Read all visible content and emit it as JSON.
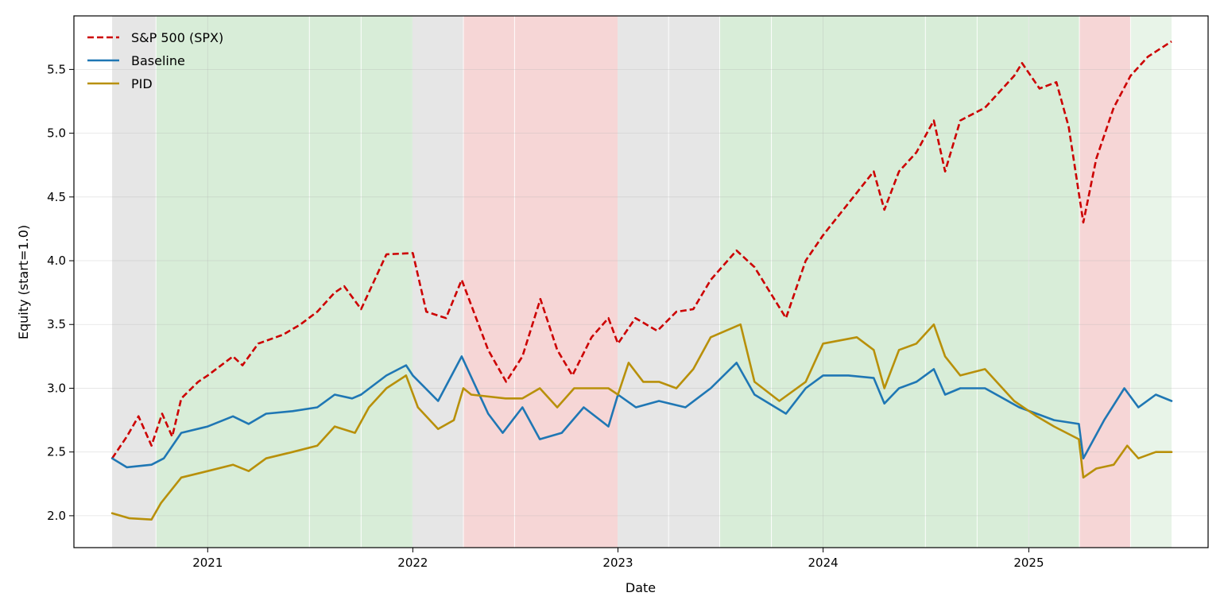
{
  "chart_data": {
    "type": "line",
    "title": "",
    "xlabel": "Date",
    "ylabel": "Equity (start=1.0)",
    "xlim": [
      "2020-05-08",
      "2025-11-16"
    ],
    "ylim": [
      1.75,
      5.92
    ],
    "x_ticks": [
      "2021-01-01",
      "2022-01-01",
      "2023-01-01",
      "2024-01-01",
      "2025-01-01"
    ],
    "x_tick_labels": [
      "2021",
      "2022",
      "2023",
      "2024",
      "2025"
    ],
    "y_ticks": [
      2.0,
      2.5,
      3.0,
      3.5,
      4.0,
      4.5,
      5.0,
      5.5
    ],
    "y_tick_labels": [
      "2.0",
      "2.5",
      "3.0",
      "3.5",
      "4.0",
      "4.5",
      "5.0",
      "5.5"
    ],
    "grid": true,
    "legend_position": "top-left",
    "regimes": [
      {
        "start": "2020-07-15",
        "end": "2020-10-01",
        "color": "#e6e6e6"
      },
      {
        "start": "2020-10-01",
        "end": "2021-07-01",
        "color": "#d8edd8"
      },
      {
        "start": "2021-07-01",
        "end": "2021-10-01",
        "color": "#d8edd8"
      },
      {
        "start": "2021-10-01",
        "end": "2022-01-01",
        "color": "#d8edd8"
      },
      {
        "start": "2022-01-01",
        "end": "2022-04-01",
        "color": "#e6e6e6"
      },
      {
        "start": "2022-04-01",
        "end": "2022-07-01",
        "color": "#f6d6d6"
      },
      {
        "start": "2022-07-01",
        "end": "2023-01-01",
        "color": "#f6d6d6"
      },
      {
        "start": "2023-01-01",
        "end": "2023-04-01",
        "color": "#e6e6e6"
      },
      {
        "start": "2023-04-01",
        "end": "2023-07-01",
        "color": "#e6e6e6"
      },
      {
        "start": "2023-07-01",
        "end": "2023-10-01",
        "color": "#d8edd8"
      },
      {
        "start": "2023-10-01",
        "end": "2024-07-01",
        "color": "#d8edd8"
      },
      {
        "start": "2024-07-01",
        "end": "2024-10-01",
        "color": "#d8edd8"
      },
      {
        "start": "2024-10-01",
        "end": "2025-01-01",
        "color": "#d8edd8"
      },
      {
        "start": "2025-01-01",
        "end": "2025-04-01",
        "color": "#d8edd8"
      },
      {
        "start": "2025-04-01",
        "end": "2025-07-01",
        "color": "#f6d6d6"
      },
      {
        "start": "2025-07-01",
        "end": "2025-09-12",
        "color": "#e8f4e8"
      }
    ],
    "series": [
      {
        "name": "S&P 500 (SPX)",
        "color": "#cc0000",
        "style": "dashed",
        "x": [
          "2020-07-15",
          "2020-08-10",
          "2020-08-31",
          "2020-09-23",
          "2020-10-12",
          "2020-10-30",
          "2020-11-15",
          "2020-12-15",
          "2021-01-01",
          "2021-02-15",
          "2021-03-04",
          "2021-04-01",
          "2021-05-15",
          "2021-06-15",
          "2021-07-15",
          "2021-08-15",
          "2021-09-01",
          "2021-10-01",
          "2021-11-15",
          "2022-01-01",
          "2022-01-25",
          "2022-03-01",
          "2022-03-29",
          "2022-05-15",
          "2022-06-16",
          "2022-07-15",
          "2022-08-16",
          "2022-09-15",
          "2022-10-12",
          "2022-11-15",
          "2022-12-15",
          "2023-01-01",
          "2023-02-01",
          "2023-03-12",
          "2023-04-15",
          "2023-05-15",
          "2023-06-15",
          "2023-07-31",
          "2023-09-01",
          "2023-10-27",
          "2023-12-01",
          "2024-01-01",
          "2024-02-15",
          "2024-03-31",
          "2024-04-19",
          "2024-05-15",
          "2024-06-15",
          "2024-07-16",
          "2024-08-05",
          "2024-09-01",
          "2024-10-15",
          "2024-12-06",
          "2024-12-20",
          "2025-01-20",
          "2025-02-19",
          "2025-03-13",
          "2025-04-08",
          "2025-05-01",
          "2025-06-01",
          "2025-07-01",
          "2025-08-01",
          "2025-09-12"
        ],
        "y": [
          2.45,
          2.62,
          2.78,
          2.55,
          2.8,
          2.62,
          2.92,
          3.05,
          3.1,
          3.25,
          3.18,
          3.35,
          3.42,
          3.5,
          3.6,
          3.75,
          3.8,
          3.62,
          4.05,
          4.06,
          3.6,
          3.55,
          3.85,
          3.3,
          3.05,
          3.25,
          3.7,
          3.3,
          3.1,
          3.4,
          3.55,
          3.35,
          3.55,
          3.45,
          3.6,
          3.62,
          3.85,
          4.08,
          3.95,
          3.55,
          4.0,
          4.2,
          4.45,
          4.7,
          4.4,
          4.7,
          4.85,
          5.1,
          4.7,
          5.1,
          5.2,
          5.45,
          5.55,
          5.35,
          5.4,
          5.05,
          4.3,
          4.8,
          5.2,
          5.45,
          5.6,
          5.72
        ]
      },
      {
        "name": "Baseline",
        "color": "#1f77b4",
        "style": "solid",
        "x": [
          "2020-07-15",
          "2020-08-10",
          "2020-09-23",
          "2020-10-15",
          "2020-11-15",
          "2021-01-01",
          "2021-02-15",
          "2021-03-15",
          "2021-04-15",
          "2021-06-01",
          "2021-07-15",
          "2021-08-15",
          "2021-09-15",
          "2021-10-01",
          "2021-11-15",
          "2021-12-20",
          "2022-01-01",
          "2022-02-15",
          "2022-03-29",
          "2022-05-15",
          "2022-06-10",
          "2022-07-15",
          "2022-08-15",
          "2022-09-23",
          "2022-11-01",
          "2022-12-15",
          "2023-01-01",
          "2023-02-02",
          "2023-03-15",
          "2023-05-01",
          "2023-06-15",
          "2023-07-31",
          "2023-09-01",
          "2023-10-27",
          "2023-12-01",
          "2024-01-01",
          "2024-02-15",
          "2024-03-31",
          "2024-04-19",
          "2024-05-15",
          "2024-06-15",
          "2024-07-16",
          "2024-08-05",
          "2024-09-01",
          "2024-10-15",
          "2024-12-15",
          "2025-01-15",
          "2025-02-15",
          "2025-03-31",
          "2025-04-08",
          "2025-05-15",
          "2025-06-20",
          "2025-07-15",
          "2025-08-15",
          "2025-09-12"
        ],
        "y": [
          2.45,
          2.38,
          2.4,
          2.45,
          2.65,
          2.7,
          2.78,
          2.72,
          2.8,
          2.82,
          2.85,
          2.95,
          2.92,
          2.95,
          3.1,
          3.18,
          3.1,
          2.9,
          3.25,
          2.8,
          2.65,
          2.85,
          2.6,
          2.65,
          2.85,
          2.7,
          2.95,
          2.85,
          2.9,
          2.85,
          3.0,
          3.2,
          2.95,
          2.8,
          3.0,
          3.1,
          3.1,
          3.08,
          2.88,
          3.0,
          3.05,
          3.15,
          2.95,
          3.0,
          3.0,
          2.85,
          2.8,
          2.75,
          2.72,
          2.45,
          2.75,
          3.0,
          2.85,
          2.95,
          2.9
        ]
      },
      {
        "name": "PID",
        "color": "#b8900a",
        "style": "solid",
        "x": [
          "2020-07-15",
          "2020-08-15",
          "2020-09-23",
          "2020-10-10",
          "2020-11-15",
          "2021-01-01",
          "2021-02-15",
          "2021-03-15",
          "2021-04-15",
          "2021-06-01",
          "2021-07-15",
          "2021-08-15",
          "2021-09-20",
          "2021-10-15",
          "2021-11-15",
          "2021-12-20",
          "2022-01-10",
          "2022-02-15",
          "2022-03-15",
          "2022-04-01",
          "2022-04-15",
          "2022-06-15",
          "2022-07-15",
          "2022-08-15",
          "2022-09-15",
          "2022-10-15",
          "2022-11-15",
          "2022-12-15",
          "2023-01-01",
          "2023-01-20",
          "2023-02-15",
          "2023-03-15",
          "2023-04-15",
          "2023-05-15",
          "2023-06-15",
          "2023-08-07",
          "2023-09-01",
          "2023-10-15",
          "2023-12-01",
          "2024-01-01",
          "2024-03-01",
          "2024-03-31",
          "2024-04-19",
          "2024-05-15",
          "2024-06-15",
          "2024-07-16",
          "2024-08-05",
          "2024-09-01",
          "2024-10-15",
          "2024-12-06",
          "2025-01-15",
          "2025-02-15",
          "2025-03-31",
          "2025-04-08",
          "2025-05-01",
          "2025-06-01",
          "2025-06-25",
          "2025-07-15",
          "2025-08-15",
          "2025-09-12"
        ],
        "y": [
          2.02,
          1.98,
          1.97,
          2.1,
          2.3,
          2.35,
          2.4,
          2.35,
          2.45,
          2.5,
          2.55,
          2.7,
          2.65,
          2.85,
          3.0,
          3.1,
          2.85,
          2.68,
          2.75,
          3.0,
          2.95,
          2.92,
          2.92,
          3.0,
          2.85,
          3.0,
          3.0,
          3.0,
          2.95,
          3.2,
          3.05,
          3.05,
          3.0,
          3.15,
          3.4,
          3.5,
          3.05,
          2.9,
          3.05,
          3.35,
          3.4,
          3.3,
          3.0,
          3.3,
          3.35,
          3.5,
          3.25,
          3.1,
          3.15,
          2.9,
          2.78,
          2.7,
          2.6,
          2.3,
          2.37,
          2.4,
          2.55,
          2.45,
          2.5,
          2.5
        ]
      }
    ]
  }
}
